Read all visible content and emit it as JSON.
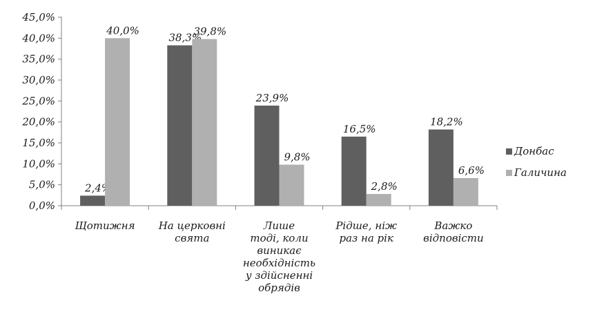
{
  "chart_data": {
    "type": "bar",
    "categories": [
      [
        "Щотижня"
      ],
      [
        "На церковні",
        "свята"
      ],
      [
        "Лише",
        "тоді, коли",
        "виникає",
        "необхідність",
        "у здійсненні",
        "обрядів"
      ],
      [
        "Рідше, ніж",
        "раз на рік"
      ],
      [
        "Важко",
        "відповісти"
      ]
    ],
    "series": [
      {
        "name": "Донбас",
        "color": "#5f5f5f",
        "values": [
          2.4,
          38.3,
          23.9,
          16.5,
          18.2
        ],
        "labels": [
          "2,4%",
          "38,3%",
          "23,9%",
          "16,5%",
          "18,2%"
        ]
      },
      {
        "name": "Галичина",
        "color": "#b0b0b0",
        "values": [
          40.0,
          39.8,
          9.8,
          2.8,
          6.6
        ],
        "labels": [
          "40,0%",
          "39,8%",
          "9,8%",
          "2,8%",
          "6,6%"
        ]
      }
    ],
    "ylim": [
      0,
      45
    ],
    "yticks": [
      {
        "value": 0,
        "label": "0,0%"
      },
      {
        "value": 5,
        "label": "5,0%"
      },
      {
        "value": 10,
        "label": "10,0%"
      },
      {
        "value": 15,
        "label": "15,0%"
      },
      {
        "value": 20,
        "label": "20,0%"
      },
      {
        "value": 25,
        "label": "25,0%"
      },
      {
        "value": 30,
        "label": "30,0%"
      },
      {
        "value": 35,
        "label": "35,0%"
      },
      {
        "value": 40,
        "label": "40,0%"
      },
      {
        "value": 45,
        "label": "45,0%"
      }
    ],
    "grid": false,
    "legend_position": "right"
  }
}
